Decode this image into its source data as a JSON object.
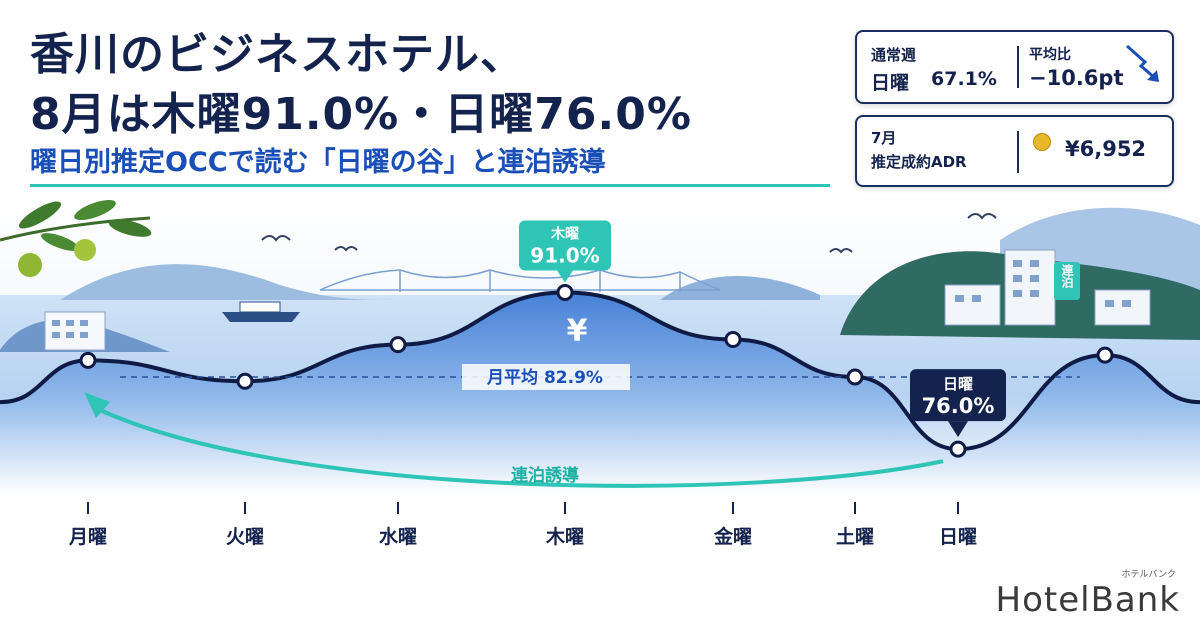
{
  "title_line1": "香川のビジネスホテル、",
  "title_line2": "8月は木曜91.0%・日曜76.0%",
  "subtitle": "曜日別推定OCCで読む「日曜の谷」と連泊誘導",
  "card_weekday": {
    "label_top": "通常週",
    "label_bottom": "日曜",
    "value": "67.1%",
    "diff_label": "平均比",
    "diff_value": "−10.6pt"
  },
  "card_adr": {
    "label_top": "7月",
    "label_bottom": "推定成約ADR",
    "value": "¥6,952"
  },
  "chart_data": {
    "type": "line",
    "categories": [
      "月曜",
      "火曜",
      "水曜",
      "木曜",
      "金曜",
      "土曜",
      "日曜"
    ],
    "series": [
      {
        "values": [
          84.5,
          82.5,
          86.0,
          91.0,
          86.5,
          82.9,
          76.0
        ]
      }
    ],
    "average": {
      "label": "月平均",
      "value_text": "82.9%",
      "value": 82.9
    },
    "callouts": {
      "peak": {
        "day": "木曜",
        "value_text": "91.0%"
      },
      "trough": {
        "day": "日曜",
        "value_text": "76.0%"
      }
    },
    "arrow_label": "連泊誘導",
    "inset_label": "連泊",
    "currency_mark": "¥",
    "colors": {
      "line": "#0f1b45",
      "accent": "#2ec4b6",
      "sea": "#2f6fd1",
      "callout_dark": "#14234d"
    }
  },
  "logo": {
    "text": "HotelBank",
    "kana": "ホテルバンク"
  }
}
